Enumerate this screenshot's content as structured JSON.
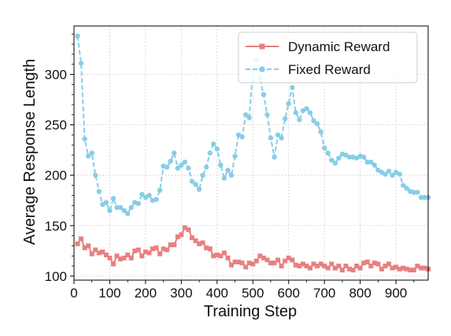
{
  "chart_data": {
    "type": "line",
    "xlabel": "Training Step",
    "ylabel": "Average Response Length",
    "xlim": [
      0,
      990
    ],
    "ylim": [
      96,
      348
    ],
    "xticks": [
      0,
      100,
      200,
      300,
      400,
      500,
      600,
      700,
      800,
      900
    ],
    "xtick_labels": [
      "0",
      "100",
      "200",
      "300",
      "400",
      "500",
      "600",
      "700",
      "800",
      "900"
    ],
    "yticks": [
      100,
      150,
      200,
      250,
      300
    ],
    "ytick_labels": [
      "100",
      "150",
      "200",
      "250",
      "300"
    ],
    "grid": true,
    "legend": {
      "position": "top-right"
    },
    "series": [
      {
        "name": "Dynamic Reward",
        "color": "#e88080",
        "marker": "square",
        "line_style": "solid",
        "x": [
          10,
          20,
          30,
          40,
          50,
          60,
          70,
          80,
          90,
          100,
          110,
          120,
          130,
          140,
          150,
          160,
          170,
          180,
          190,
          200,
          210,
          220,
          230,
          240,
          250,
          260,
          270,
          280,
          290,
          300,
          310,
          320,
          330,
          340,
          350,
          360,
          370,
          380,
          390,
          400,
          410,
          420,
          430,
          440,
          450,
          460,
          470,
          480,
          490,
          500,
          510,
          520,
          530,
          540,
          550,
          560,
          570,
          580,
          590,
          600,
          610,
          620,
          630,
          640,
          650,
          660,
          670,
          680,
          690,
          700,
          710,
          720,
          730,
          740,
          750,
          760,
          770,
          780,
          790,
          800,
          810,
          820,
          830,
          840,
          850,
          860,
          870,
          880,
          890,
          900,
          910,
          920,
          930,
          940,
          950,
          960,
          970,
          980,
          990
        ],
        "values": [
          132,
          137,
          128,
          130,
          122,
          126,
          123,
          124,
          121,
          118,
          112,
          120,
          117,
          118,
          121,
          118,
          125,
          126,
          120,
          124,
          123,
          127,
          128,
          122,
          127,
          126,
          131,
          131,
          139,
          141,
          148,
          146,
          138,
          135,
          132,
          133,
          128,
          127,
          120,
          121,
          120,
          123,
          118,
          111,
          114,
          114,
          113,
          109,
          113,
          112,
          115,
          120,
          118,
          116,
          113,
          113,
          116,
          110,
          115,
          118,
          116,
          111,
          110,
          112,
          110,
          108,
          112,
          110,
          112,
          110,
          108,
          112,
          108,
          110,
          106,
          110,
          107,
          106,
          110,
          108,
          113,
          114,
          110,
          113,
          112,
          107,
          110,
          112,
          108,
          109,
          107,
          108,
          107,
          106,
          106,
          110,
          108,
          108,
          107
        ]
      },
      {
        "name": "Fixed Reward",
        "color": "#87cde8",
        "marker": "circle",
        "line_style": "dashed",
        "x": [
          10,
          20,
          30,
          40,
          50,
          60,
          70,
          80,
          90,
          100,
          110,
          120,
          130,
          140,
          150,
          160,
          170,
          180,
          190,
          200,
          210,
          220,
          230,
          240,
          250,
          260,
          270,
          280,
          290,
          300,
          310,
          320,
          330,
          340,
          350,
          360,
          370,
          380,
          390,
          400,
          410,
          420,
          430,
          440,
          450,
          460,
          470,
          480,
          490,
          500,
          510,
          520,
          530,
          540,
          550,
          560,
          570,
          580,
          590,
          600,
          610,
          620,
          630,
          640,
          650,
          660,
          670,
          680,
          690,
          700,
          710,
          720,
          730,
          740,
          750,
          760,
          770,
          780,
          790,
          800,
          810,
          820,
          830,
          840,
          850,
          860,
          870,
          880,
          890,
          900,
          910,
          920,
          930,
          940,
          950,
          960,
          970,
          980,
          990
        ],
        "values": [
          338,
          311,
          236,
          219,
          222,
          200,
          184,
          171,
          173,
          165,
          177,
          168,
          168,
          165,
          162,
          168,
          173,
          172,
          181,
          178,
          180,
          175,
          176,
          185,
          209,
          208,
          214,
          222,
          207,
          210,
          213,
          207,
          194,
          191,
          186,
          200,
          208,
          222,
          231,
          226,
          210,
          197,
          205,
          200,
          219,
          240,
          238,
          260,
          257,
          304,
          314,
          296,
          280,
          260,
          237,
          218,
          240,
          237,
          256,
          271,
          287,
          262,
          255,
          264,
          266,
          262,
          254,
          251,
          243,
          227,
          222,
          215,
          212,
          217,
          221,
          220,
          218,
          218,
          217,
          219,
          218,
          213,
          213,
          210,
          205,
          203,
          201,
          204,
          200,
          203,
          201,
          190,
          187,
          184,
          183,
          183,
          178,
          178,
          178
        ]
      }
    ]
  }
}
